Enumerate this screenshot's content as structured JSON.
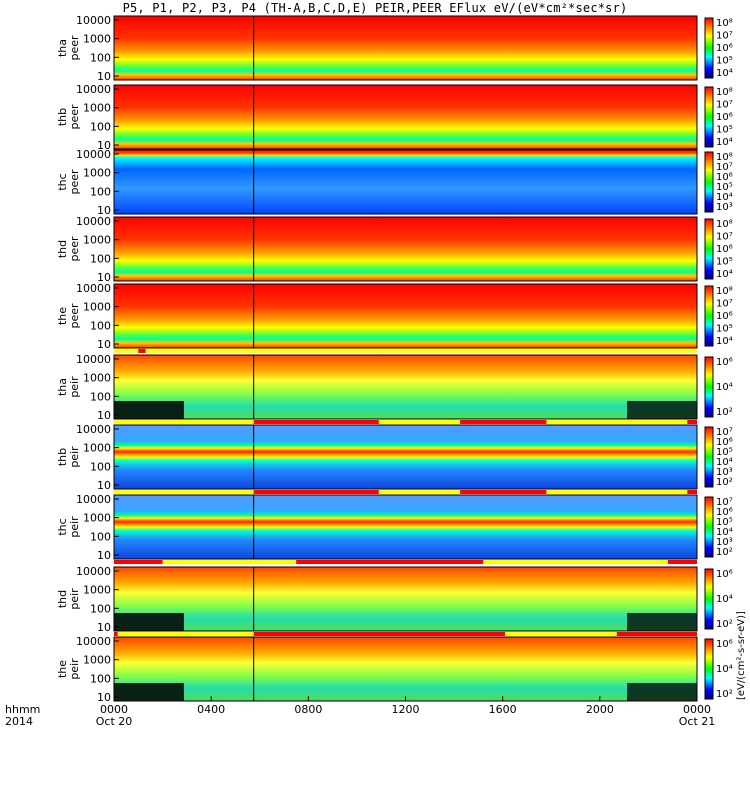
{
  "title": "P5, P1, P2, P3, P4 (TH-A,B,C,D,E) PEIR,PEER EFlux eV/(eV*cm²*sec*sr)",
  "x_axis": {
    "row_label_1": "hhmm",
    "row_label_2": "2014",
    "ticks": [
      "0000",
      "0400",
      "0800",
      "1200",
      "1600",
      "2000",
      "0000"
    ],
    "date_labels": [
      "Oct 20",
      "Oct 21"
    ]
  },
  "colorbar_label": "[eV/(cm²-s-sr-eV)]",
  "chart_data": {
    "type": "heatmap",
    "x_range_hours": [
      0,
      24
    ],
    "y_scale": "log",
    "panels": [
      {
        "id": "tha-peer",
        "label_top": "tha",
        "label_bottom": "peer",
        "yticks": [
          "10000",
          "1000",
          "100",
          "10"
        ],
        "cbar_ticks": [
          "10⁸",
          "10⁷",
          "10⁶",
          "10⁵",
          "10⁴"
        ],
        "cmap": "hot"
      },
      {
        "id": "thb-peer",
        "label_top": "thb",
        "label_bottom": "peer",
        "yticks": [
          "10000",
          "1000",
          "100",
          "10"
        ],
        "cbar_ticks": [
          "10⁸",
          "10⁷",
          "10⁶",
          "10⁵",
          "10⁴"
        ],
        "cmap": "hot"
      },
      {
        "id": "thc-peer",
        "label_top": "thc",
        "label_bottom": "peer",
        "yticks": [
          "10000",
          "1000",
          "100",
          "10"
        ],
        "cbar_ticks": [
          "10⁸",
          "10⁷",
          "10⁶",
          "10⁵",
          "10⁴",
          "10³"
        ],
        "cmap": "cold"
      },
      {
        "id": "thd-peer",
        "label_top": "thd",
        "label_bottom": "peer",
        "yticks": [
          "10000",
          "1000",
          "100",
          "10"
        ],
        "cbar_ticks": [
          "10⁸",
          "10⁷",
          "10⁶",
          "10⁵",
          "10⁴"
        ],
        "cmap": "hot"
      },
      {
        "id": "the-peer",
        "label_top": "the",
        "label_bottom": "peer",
        "yticks": [
          "10000",
          "1000",
          "100",
          "10"
        ],
        "cbar_ticks": [
          "10⁸",
          "10⁷",
          "10⁶",
          "10⁵",
          "10⁴"
        ],
        "cmap": "hot"
      },
      {
        "id": "tha-peir",
        "label_top": "tha",
        "label_bottom": "peir",
        "yticks": [
          "10000",
          "1000",
          "100",
          "10"
        ],
        "cbar_ticks": [
          "10⁶",
          "10⁴",
          "10²"
        ],
        "cmap": "ion"
      },
      {
        "id": "thb-peir",
        "label_top": "thb",
        "label_bottom": "peir",
        "yticks": [
          "10000",
          "1000",
          "100",
          "10"
        ],
        "cbar_ticks": [
          "10⁷",
          "10⁶",
          "10⁵",
          "10⁴",
          "10³",
          "10²"
        ],
        "cmap": "band"
      },
      {
        "id": "thc-peir",
        "label_top": "thc",
        "label_bottom": "peir",
        "yticks": [
          "10000",
          "1000",
          "100",
          "10"
        ],
        "cbar_ticks": [
          "10⁷",
          "10⁶",
          "10⁵",
          "10⁴",
          "10³",
          "10²"
        ],
        "cmap": "band"
      },
      {
        "id": "thd-peir",
        "label_top": "thd",
        "label_bottom": "peir",
        "yticks": [
          "10000",
          "1000",
          "100",
          "10"
        ],
        "cbar_ticks": [
          "10⁶",
          "10⁴",
          "10²"
        ],
        "cmap": "ion"
      },
      {
        "id": "the-peir",
        "label_top": "the",
        "label_bottom": "peir",
        "yticks": [
          "10000",
          "1000",
          "100",
          "10"
        ],
        "cbar_ticks": [
          "10⁶",
          "10⁴",
          "10²"
        ],
        "cmap": "ion"
      }
    ],
    "flag_bars_hours": [
      {
        "after_panel": 4,
        "segments": [
          [
            1.0,
            1.3
          ]
        ]
      },
      {
        "after_panel": 5,
        "segments": [
          [
            5.75,
            10.9
          ],
          [
            14.25,
            17.8
          ],
          [
            23.6,
            24.0
          ]
        ]
      },
      {
        "after_panel": 6,
        "segments": [
          [
            5.75,
            10.9
          ],
          [
            14.25,
            17.8
          ],
          [
            23.6,
            24.0
          ]
        ]
      },
      {
        "after_panel": 7,
        "segments": [
          [
            0.0,
            2.0
          ],
          [
            7.5,
            15.2
          ],
          [
            22.8,
            24.0
          ]
        ]
      },
      {
        "after_panel": 8,
        "segments": [
          [
            0.0,
            0.15
          ],
          [
            5.75,
            16.1
          ],
          [
            20.7,
            24.0
          ]
        ]
      }
    ],
    "colors": {
      "bar_red": "#ff0000",
      "bar_yellow": "#ffff00"
    }
  }
}
